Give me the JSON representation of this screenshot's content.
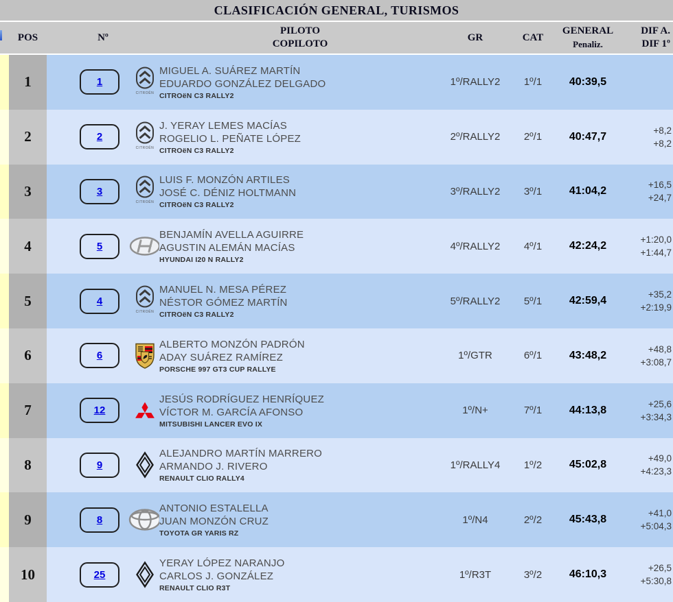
{
  "title": "CLASIFICACIÓN GENERAL, TURISMOS",
  "header": {
    "pos": "POS",
    "num": "Nº",
    "pilot_line1": "PILOTO",
    "pilot_line2": "COPILOTO",
    "gr": "GR",
    "cat": "CAT",
    "general_line1": "GENERAL",
    "general_line2": "Penaliz.",
    "dif_line1": "DIF A.",
    "dif_line2": "DIF 1º"
  },
  "colors": {
    "title_grey": "#c2c2c2",
    "header_grey": "#cacaca",
    "row_blue_dark": "#b4d0f2",
    "row_blue_light": "#d8e5fa",
    "pos_grey_dark": "#b1b1b1",
    "pos_grey_light": "#c6c6c6",
    "strip_yellow_dark": "#ffffc4",
    "strip_yellow_light": "#ffffe2",
    "link_blue": "#0000e0",
    "mitsubishi_red": "#e60012",
    "porsche_gold": "#e2b84e"
  },
  "rows": [
    {
      "pos": "1",
      "car_number": "1",
      "brand_icon": "citroen-logo",
      "pilot": "MIGUEL A. SUÁREZ MARTÍN",
      "copilot": "EDUARDO GONZÁLEZ DELGADO",
      "car": "CITROëN C3 RALLY2",
      "gr": "1º/RALLY2",
      "cat": "1º/1",
      "general": "40:39,5",
      "dif_a": "",
      "dif_1": ""
    },
    {
      "pos": "2",
      "car_number": "2",
      "brand_icon": "citroen-logo",
      "pilot": "J. YERAY LEMES MACÍAS",
      "copilot": "ROGELIO L. PEÑATE LÓPEZ",
      "car": "CITROëN C3 RALLY2",
      "gr": "2º/RALLY2",
      "cat": "2º/1",
      "general": "40:47,7",
      "dif_a": "+8,2",
      "dif_1": "+8,2"
    },
    {
      "pos": "3",
      "car_number": "3",
      "brand_icon": "citroen-logo",
      "pilot": "LUIS F. MONZÓN ARTILES",
      "copilot": "JOSÉ C. DÉNIZ HOLTMANN",
      "car": "CITROëN C3 RALLY2",
      "gr": "3º/RALLY2",
      "cat": "3º/1",
      "general": "41:04,2",
      "dif_a": "+16,5",
      "dif_1": "+24,7"
    },
    {
      "pos": "4",
      "car_number": "5",
      "brand_icon": "hyundai-logo",
      "pilot": "BENJAMÍN AVELLA AGUIRRE",
      "copilot": "AGUSTIN ALEMÁN MACÍAS",
      "car": "HYUNDAI I20 N RALLY2",
      "gr": "4º/RALLY2",
      "cat": "4º/1",
      "general": "42:24,2",
      "dif_a": "+1:20,0",
      "dif_1": "+1:44,7"
    },
    {
      "pos": "5",
      "car_number": "4",
      "brand_icon": "citroen-logo",
      "pilot": "MANUEL N. MESA PÉREZ",
      "copilot": "NÉSTOR GÓMEZ MARTÍN",
      "car": "CITROëN C3 RALLY2",
      "gr": "5º/RALLY2",
      "cat": "5º/1",
      "general": "42:59,4",
      "dif_a": "+35,2",
      "dif_1": "+2:19,9"
    },
    {
      "pos": "6",
      "car_number": "6",
      "brand_icon": "porsche-logo",
      "pilot": "ALBERTO MONZÓN PADRÓN",
      "copilot": "ADAY SUÁREZ RAMÍREZ",
      "car": "PORSCHE 997 GT3 CUP RALLYE",
      "gr": "1º/GTR",
      "cat": "6º/1",
      "general": "43:48,2",
      "dif_a": "+48,8",
      "dif_1": "+3:08,7"
    },
    {
      "pos": "7",
      "car_number": "12",
      "brand_icon": "mitsubishi-logo",
      "pilot": "JESÚS RODRÍGUEZ HENRÍQUEZ",
      "copilot": "VÍCTOR M. GARCÍA AFONSO",
      "car": "MITSUBISHI LANCER EVO IX",
      "gr": "1º/N+",
      "cat": "7º/1",
      "general": "44:13,8",
      "dif_a": "+25,6",
      "dif_1": "+3:34,3"
    },
    {
      "pos": "8",
      "car_number": "9",
      "brand_icon": "renault-logo",
      "pilot": "ALEJANDRO MARTÍN MARRERO",
      "copilot": "ARMANDO J. RIVERO",
      "car": "RENAULT CLIO RALLY4",
      "gr": "1º/RALLY4",
      "cat": "1º/2",
      "general": "45:02,8",
      "dif_a": "+49,0",
      "dif_1": "+4:23,3"
    },
    {
      "pos": "9",
      "car_number": "8",
      "brand_icon": "toyota-logo",
      "pilot": "ANTONIO ESTALELLA",
      "copilot": "JUAN MONZÓN CRUZ",
      "car": "TOYOTA GR YARIS RZ",
      "gr": "1º/N4",
      "cat": "2º/2",
      "general": "45:43,8",
      "dif_a": "+41,0",
      "dif_1": "+5:04,3"
    },
    {
      "pos": "10",
      "car_number": "25",
      "brand_icon": "renault-logo",
      "pilot": "YERAY LÓPEZ NARANJO",
      "copilot": "CARLOS J. GONZÁLEZ",
      "car": "RENAULT CLIO R3T",
      "gr": "1º/R3T",
      "cat": "3º/2",
      "general": "46:10,3",
      "dif_a": "+26,5",
      "dif_1": "+5:30,8"
    }
  ]
}
